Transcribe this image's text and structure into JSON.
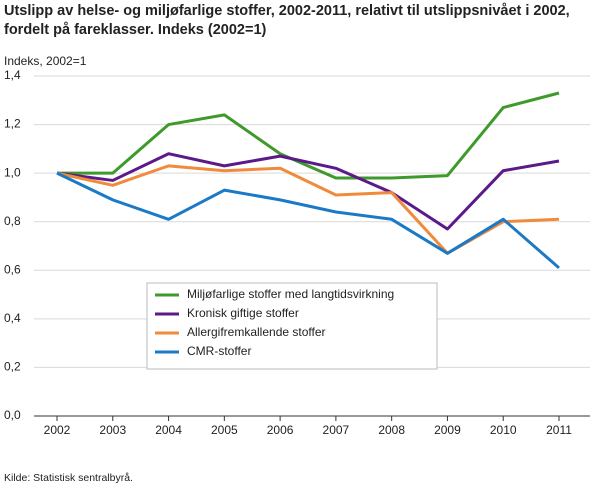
{
  "chart_data": {
    "type": "line",
    "title": "Utslipp av helse- og miljøfarlige stoffer, 2002-2011, relativt til utslippsnivået i 2002, fordelt på fareklasser. Indeks (2002=1)",
    "y_axis_label": "Indeks, 2002=1",
    "source": "Kilde: Statistisk sentralbyrå.",
    "categories": [
      "2002",
      "2003",
      "2004",
      "2005",
      "2006",
      "2007",
      "2008",
      "2009",
      "2010",
      "2011"
    ],
    "series": [
      {
        "name": "Miljøfarlige stoffer med langtidsvirkning",
        "color": "#3f9a2c",
        "values": [
          1.0,
          1.0,
          1.2,
          1.24,
          1.08,
          0.98,
          0.98,
          0.99,
          1.27,
          1.33
        ]
      },
      {
        "name": "Kronisk giftige stoffer",
        "color": "#5b1a88",
        "values": [
          1.0,
          0.97,
          1.08,
          1.03,
          1.07,
          1.02,
          0.92,
          0.77,
          1.01,
          1.05
        ]
      },
      {
        "name": "Allergifremkallende stoffer",
        "color": "#f08a3c",
        "values": [
          1.0,
          0.95,
          1.03,
          1.01,
          1.02,
          0.91,
          0.92,
          0.67,
          0.8,
          0.81
        ]
      },
      {
        "name": "CMR-stoffer",
        "color": "#1a7ac8",
        "values": [
          1.0,
          0.89,
          0.81,
          0.93,
          0.89,
          0.84,
          0.81,
          0.67,
          0.81,
          0.61
        ]
      }
    ],
    "ylim": [
      0,
      1.4
    ],
    "yticks": [
      {
        "value": 0,
        "label": "0,0"
      },
      {
        "value": 0.2,
        "label": "0,2"
      },
      {
        "value": 0.4,
        "label": "0,4"
      },
      {
        "value": 0.6,
        "label": "0,6"
      },
      {
        "value": 0.8,
        "label": "0,8"
      },
      {
        "value": 1.0,
        "label": "1,0"
      },
      {
        "value": 1.2,
        "label": "1,2"
      },
      {
        "value": 1.4,
        "label": "1,4"
      }
    ],
    "grid": true
  }
}
